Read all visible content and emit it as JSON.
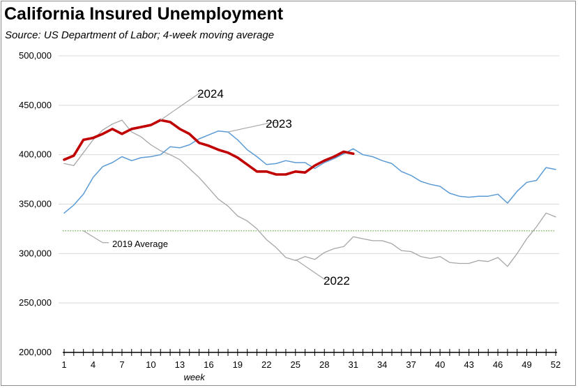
{
  "title": "California Insured Unemployment",
  "subtitle": "Source:  US Department of Labor; 4-week moving average",
  "chart_data": {
    "type": "line",
    "title": "California Insured Unemployment",
    "subtitle": "Source:  US Department of Labor; 4-week moving average",
    "xlabel": "week",
    "ylabel": "",
    "xlim": [
      1,
      52
    ],
    "ylim": [
      200000,
      500000
    ],
    "y_ticks": [
      "200,000",
      "250,000",
      "300,000",
      "350,000",
      "400,000",
      "450,000",
      "500,000"
    ],
    "x_ticks": [
      "1",
      "4",
      "7",
      "10",
      "13",
      "16",
      "19",
      "22",
      "25",
      "28",
      "31",
      "34",
      "37",
      "40",
      "43",
      "46",
      "49",
      "52"
    ],
    "grid": "horizontal",
    "series": [
      {
        "name": "2024",
        "color": "#c00000",
        "values": [
          395000,
          399000,
          415000,
          417000,
          421000,
          426000,
          421000,
          426000,
          428000,
          430000,
          435000,
          433000,
          426000,
          421000,
          412000,
          409000,
          405000,
          402000,
          397000,
          390000,
          383000,
          383000,
          380000,
          380000,
          383000,
          382000,
          389000,
          394000,
          398000,
          403000,
          401000
        ]
      },
      {
        "name": "2023",
        "color": "#5b9bd5",
        "values": [
          341000,
          349000,
          360000,
          377000,
          388000,
          392000,
          398000,
          394000,
          397000,
          398000,
          400000,
          408000,
          407000,
          410000,
          416000,
          420000,
          424000,
          423000,
          415000,
          405000,
          398000,
          390000,
          391000,
          394000,
          392000,
          392000,
          386000,
          392000,
          396000,
          401000,
          406000,
          400000,
          398000,
          394000,
          391000,
          383000,
          379000,
          373000,
          370000,
          368000,
          361000,
          358000,
          357000,
          358000,
          358000,
          360000,
          351000,
          363000,
          372000,
          374000,
          387000,
          385000
        ]
      },
      {
        "name": "2022",
        "color": "#a6a6a6",
        "values": [
          391000,
          389000,
          402000,
          415000,
          425000,
          431000,
          435000,
          423000,
          418000,
          410000,
          404000,
          400000,
          395000,
          386000,
          377000,
          366000,
          355000,
          348000,
          338000,
          333000,
          325000,
          314000,
          306000,
          296000,
          293000,
          297000,
          294000,
          301000,
          305000,
          307000,
          317000,
          315000,
          313000,
          313000,
          310000,
          303000,
          302000,
          297000,
          295000,
          297000,
          291000,
          290000,
          290000,
          293000,
          292000,
          296000,
          287000,
          300000,
          315000,
          327000,
          341000,
          337000
        ]
      }
    ],
    "reference_line": {
      "name": "2019 Average",
      "value": 323000,
      "color": "#70ad47"
    },
    "annotations": [
      "2024",
      "2023",
      "2022",
      "2019 Average"
    ]
  }
}
